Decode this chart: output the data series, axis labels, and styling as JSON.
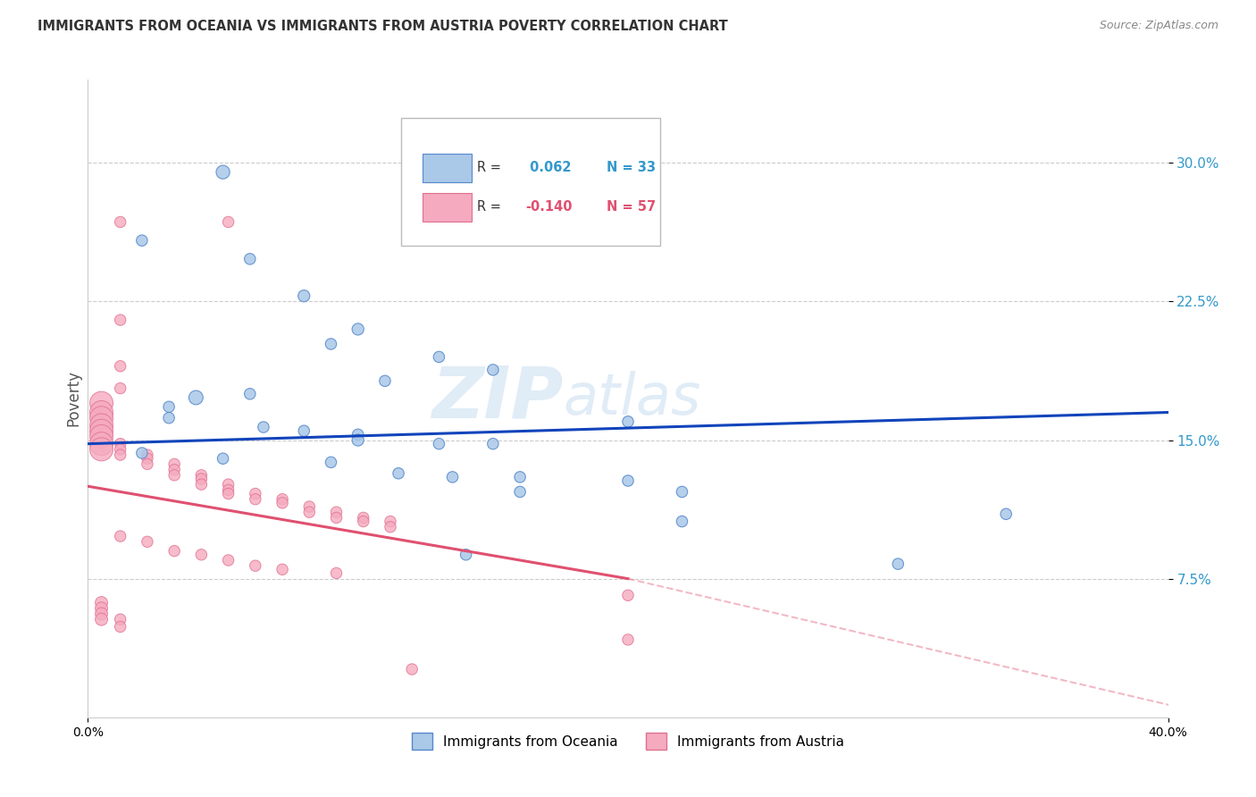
{
  "title": "IMMIGRANTS FROM OCEANIA VS IMMIGRANTS FROM AUSTRIA POVERTY CORRELATION CHART",
  "source": "Source: ZipAtlas.com",
  "ylabel": "Poverty",
  "yticks": [
    0.075,
    0.15,
    0.225,
    0.3
  ],
  "ytick_labels": [
    "7.5%",
    "15.0%",
    "22.5%",
    "30.0%"
  ],
  "xlim": [
    0.0,
    0.4
  ],
  "ylim": [
    0.0,
    0.345
  ],
  "legend_oceania_R": "0.062",
  "legend_oceania_N": "33",
  "legend_austria_R": "-0.140",
  "legend_austria_N": "57",
  "oceania_color": "#aac8e8",
  "austria_color": "#f5aabf",
  "oceania_edge": "#5588cc",
  "austria_edge": "#e07090",
  "line_oceania_color": "#1144bb",
  "line_austria_color": "#e05070",
  "watermark": "ZIPatlas",
  "oceania_trend": [
    0.0,
    0.4,
    0.148,
    0.165
  ],
  "austria_trend_solid": [
    0.0,
    0.2,
    0.125,
    0.075
  ],
  "austria_trend_dashed": [
    0.2,
    0.42,
    0.075,
    0.0
  ],
  "oceania_points": [
    [
      0.05,
      0.295
    ],
    [
      0.02,
      0.258
    ],
    [
      0.06,
      0.248
    ],
    [
      0.08,
      0.228
    ],
    [
      0.1,
      0.21
    ],
    [
      0.09,
      0.202
    ],
    [
      0.13,
      0.195
    ],
    [
      0.15,
      0.188
    ],
    [
      0.11,
      0.182
    ],
    [
      0.06,
      0.175
    ],
    [
      0.04,
      0.173
    ],
    [
      0.03,
      0.168
    ],
    [
      0.03,
      0.162
    ],
    [
      0.065,
      0.157
    ],
    [
      0.08,
      0.155
    ],
    [
      0.1,
      0.153
    ],
    [
      0.1,
      0.15
    ],
    [
      0.13,
      0.148
    ],
    [
      0.15,
      0.148
    ],
    [
      0.2,
      0.16
    ],
    [
      0.02,
      0.143
    ],
    [
      0.05,
      0.14
    ],
    [
      0.09,
      0.138
    ],
    [
      0.115,
      0.132
    ],
    [
      0.135,
      0.13
    ],
    [
      0.16,
      0.13
    ],
    [
      0.2,
      0.128
    ],
    [
      0.16,
      0.122
    ],
    [
      0.22,
      0.122
    ],
    [
      0.22,
      0.106
    ],
    [
      0.14,
      0.088
    ],
    [
      0.34,
      0.11
    ],
    [
      0.3,
      0.083
    ]
  ],
  "austria_points": [
    [
      0.012,
      0.268
    ],
    [
      0.052,
      0.268
    ],
    [
      0.012,
      0.215
    ],
    [
      0.012,
      0.19
    ],
    [
      0.012,
      0.178
    ],
    [
      0.005,
      0.17
    ],
    [
      0.005,
      0.165
    ],
    [
      0.005,
      0.162
    ],
    [
      0.005,
      0.158
    ],
    [
      0.005,
      0.155
    ],
    [
      0.005,
      0.152
    ],
    [
      0.005,
      0.148
    ],
    [
      0.005,
      0.145
    ],
    [
      0.012,
      0.148
    ],
    [
      0.012,
      0.145
    ],
    [
      0.012,
      0.142
    ],
    [
      0.022,
      0.142
    ],
    [
      0.022,
      0.14
    ],
    [
      0.022,
      0.137
    ],
    [
      0.032,
      0.137
    ],
    [
      0.032,
      0.134
    ],
    [
      0.032,
      0.131
    ],
    [
      0.042,
      0.131
    ],
    [
      0.042,
      0.129
    ],
    [
      0.042,
      0.126
    ],
    [
      0.052,
      0.126
    ],
    [
      0.052,
      0.123
    ],
    [
      0.052,
      0.121
    ],
    [
      0.062,
      0.121
    ],
    [
      0.062,
      0.118
    ],
    [
      0.072,
      0.118
    ],
    [
      0.072,
      0.116
    ],
    [
      0.082,
      0.114
    ],
    [
      0.082,
      0.111
    ],
    [
      0.092,
      0.111
    ],
    [
      0.092,
      0.108
    ],
    [
      0.102,
      0.108
    ],
    [
      0.102,
      0.106
    ],
    [
      0.112,
      0.106
    ],
    [
      0.112,
      0.103
    ],
    [
      0.012,
      0.098
    ],
    [
      0.022,
      0.095
    ],
    [
      0.032,
      0.09
    ],
    [
      0.042,
      0.088
    ],
    [
      0.052,
      0.085
    ],
    [
      0.062,
      0.082
    ],
    [
      0.072,
      0.08
    ],
    [
      0.092,
      0.078
    ],
    [
      0.2,
      0.066
    ],
    [
      0.2,
      0.042
    ],
    [
      0.12,
      0.026
    ],
    [
      0.005,
      0.062
    ],
    [
      0.005,
      0.059
    ],
    [
      0.005,
      0.056
    ],
    [
      0.005,
      0.053
    ],
    [
      0.012,
      0.053
    ],
    [
      0.012,
      0.049
    ]
  ],
  "oceania_sizes": [
    120,
    80,
    80,
    90,
    90,
    80,
    80,
    80,
    80,
    80,
    130,
    80,
    80,
    80,
    80,
    80,
    90,
    80,
    80,
    80,
    80,
    80,
    80,
    80,
    80,
    80,
    80,
    80,
    80,
    80,
    80,
    80,
    80
  ],
  "austria_sizes": [
    80,
    80,
    80,
    80,
    80,
    350,
    350,
    350,
    350,
    350,
    350,
    350,
    350,
    80,
    80,
    80,
    80,
    80,
    80,
    80,
    80,
    80,
    80,
    80,
    80,
    80,
    80,
    80,
    80,
    80,
    80,
    80,
    80,
    80,
    80,
    80,
    80,
    80,
    80,
    80,
    80,
    80,
    80,
    80,
    80,
    80,
    80,
    80,
    80,
    80,
    80,
    100,
    100,
    100,
    100,
    80,
    80
  ]
}
